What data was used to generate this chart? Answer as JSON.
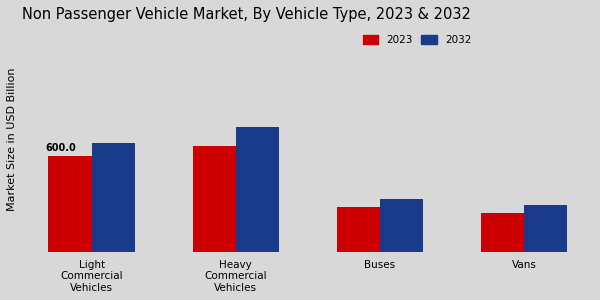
{
  "title": "Non Passenger Vehicle Market, By Vehicle Type, 2023 & 2032",
  "ylabel": "Market Size in USD Billion",
  "categories": [
    "Light\nCommercial\nVehicles",
    "Heavy\nCommercial\nVehicles",
    "Buses",
    "Vans"
  ],
  "values_2023": [
    600.0,
    660.0,
    280.0,
    245.0
  ],
  "values_2032": [
    680.0,
    780.0,
    330.0,
    295.0
  ],
  "color_2023": "#cc0000",
  "color_2032": "#1a3a8a",
  "annotation_text": "600.0",
  "annotation_category_idx": 0,
  "background_color": "#d8d8d8",
  "bar_width": 0.3,
  "ylim": [
    0,
    1400
  ],
  "legend_labels": [
    "2023",
    "2032"
  ],
  "title_fontsize": 10.5,
  "label_fontsize": 8,
  "tick_fontsize": 7.5
}
